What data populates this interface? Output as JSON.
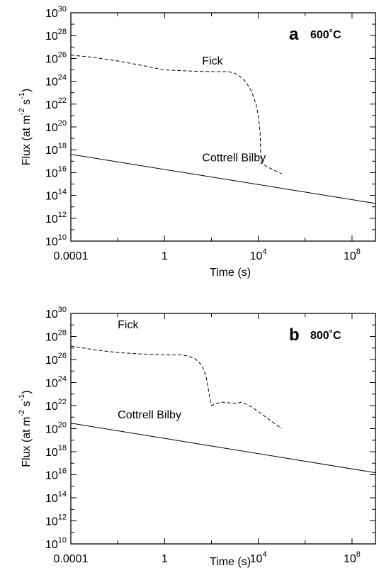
{
  "chart_data": [
    {
      "type": "line",
      "panel_letter": "a",
      "condition": "600˚C",
      "xlabel": "Time (s)",
      "ylabel": "Flux (at m",
      "ylabel_exp1": "-2",
      "ylabel_mid": " s",
      "ylabel_exp2": "-1",
      "ylabel_end": ")",
      "x_scale": "log",
      "y_scale": "log",
      "xlim": [
        0.0001,
        1000000000
      ],
      "ylim": [
        10000000000.0,
        1e+30
      ],
      "x_ticks": [
        {
          "value": 0.0001,
          "label": "0.0001"
        },
        {
          "value": 1,
          "label": "1"
        },
        {
          "value": 10000,
          "base": "10",
          "exp": "4"
        },
        {
          "value": 100000000,
          "base": "10",
          "exp": "8"
        }
      ],
      "y_ticks": [
        {
          "value": 10000000000.0,
          "base": "10",
          "exp": "10"
        },
        {
          "value": 1000000000000.0,
          "base": "10",
          "exp": "12"
        },
        {
          "value": 100000000000000.0,
          "base": "10",
          "exp": "14"
        },
        {
          "value": 1e+16,
          "base": "10",
          "exp": "16"
        },
        {
          "value": 1e+18,
          "base": "10",
          "exp": "18"
        },
        {
          "value": 1e+20,
          "base": "10",
          "exp": "20"
        },
        {
          "value": 1e+22,
          "base": "10",
          "exp": "22"
        },
        {
          "value": 1e+24,
          "base": "10",
          "exp": "24"
        },
        {
          "value": 1e+26,
          "base": "10",
          "exp": "26"
        },
        {
          "value": 1e+28,
          "base": "10",
          "exp": "28"
        },
        {
          "value": 1e+30,
          "base": "10",
          "exp": "30"
        }
      ],
      "grid": false,
      "series": [
        {
          "name": "Fick",
          "dash": true,
          "label_x": 40,
          "label_y": 3e+25,
          "points": [
            [
              0.0001,
              2e+26
            ],
            [
              0.001,
              1.2e+26
            ],
            [
              0.01,
              6e+25
            ],
            [
              0.1,
              2.5e+25
            ],
            [
              1,
              1e+25
            ],
            [
              10,
              8e+24
            ],
            [
              100,
              7e+24
            ],
            [
              500,
              7e+24
            ],
            [
              1000,
              5e+24
            ],
            [
              2000,
              2e+24
            ],
            [
              3000,
              8e+23
            ],
            [
              5000,
              1.5e+23
            ],
            [
              8000,
              1e+22
            ],
            [
              10000,
              1e+21
            ],
            [
              12000,
              3e+19
            ],
            [
              13000,
              1e+17
            ],
            [
              20000,
              4e+16
            ],
            [
              50000,
              1.5e+16
            ],
            [
              100000,
              8000000000000000.0
            ]
          ]
        },
        {
          "name": "Cottrell Bilby",
          "dash": false,
          "label_x": 40,
          "label_y": 1e+17,
          "points": [
            [
              0.0001,
              4e+17
            ],
            [
              1000000000,
              20000000000000.0
            ]
          ]
        }
      ]
    },
    {
      "type": "line",
      "panel_letter": "b",
      "condition": "800˚C",
      "xlabel": "Time (s)",
      "ylabel": "Flux (at m",
      "ylabel_exp1": "-2",
      "ylabel_mid": " s",
      "ylabel_exp2": "-1",
      "ylabel_end": ")",
      "x_scale": "log",
      "y_scale": "log",
      "xlim": [
        0.0001,
        1000000000
      ],
      "ylim": [
        10000000000.0,
        1e+30
      ],
      "x_ticks": [
        {
          "value": 0.0001,
          "label": "0.0001"
        },
        {
          "value": 1,
          "label": "1"
        },
        {
          "value": 10000,
          "base": "10",
          "exp": "4"
        },
        {
          "value": 100000000,
          "base": "10",
          "exp": "8"
        }
      ],
      "y_ticks": [
        {
          "value": 10000000000.0,
          "base": "10",
          "exp": "10"
        },
        {
          "value": 1000000000000.0,
          "base": "10",
          "exp": "12"
        },
        {
          "value": 100000000000000.0,
          "base": "10",
          "exp": "14"
        },
        {
          "value": 1e+16,
          "base": "10",
          "exp": "16"
        },
        {
          "value": 1e+18,
          "base": "10",
          "exp": "18"
        },
        {
          "value": 1e+20,
          "base": "10",
          "exp": "20"
        },
        {
          "value": 1e+22,
          "base": "10",
          "exp": "22"
        },
        {
          "value": 1e+24,
          "base": "10",
          "exp": "24"
        },
        {
          "value": 1e+26,
          "base": "10",
          "exp": "26"
        },
        {
          "value": 1e+28,
          "base": "10",
          "exp": "28"
        },
        {
          "value": 1e+30,
          "base": "10",
          "exp": "30"
        }
      ],
      "grid": false,
      "series": [
        {
          "name": "Fick",
          "dash": true,
          "label_x": 0.01,
          "label_y": 5e+28,
          "points": [
            [
              0.0001,
              1.5e+27
            ],
            [
              0.001,
              7e+26
            ],
            [
              0.01,
              4e+26
            ],
            [
              0.1,
              3e+26
            ],
            [
              1,
              2.5e+26
            ],
            [
              5,
              2.5e+26
            ],
            [
              10,
              2e+26
            ],
            [
              20,
              1.2e+26
            ],
            [
              40,
              3e+25
            ],
            [
              60,
              3e+24
            ],
            [
              80,
              1e+23
            ],
            [
              100,
              1e+22
            ],
            [
              150,
              1.5e+22
            ],
            [
              300,
              2e+22
            ],
            [
              1000,
              1.5e+22
            ],
            [
              2000,
              2e+22
            ],
            [
              5000,
              8e+21
            ],
            [
              10000,
              3e+21
            ],
            [
              100000,
              1e+20
            ]
          ]
        },
        {
          "name": "Cottrell Bilby",
          "dash": false,
          "label_x": 0.01,
          "label_y": 8e+20,
          "points": [
            [
              0.0001,
              3e+20
            ],
            [
              1000000000,
              1.5e+16
            ]
          ]
        }
      ]
    }
  ]
}
